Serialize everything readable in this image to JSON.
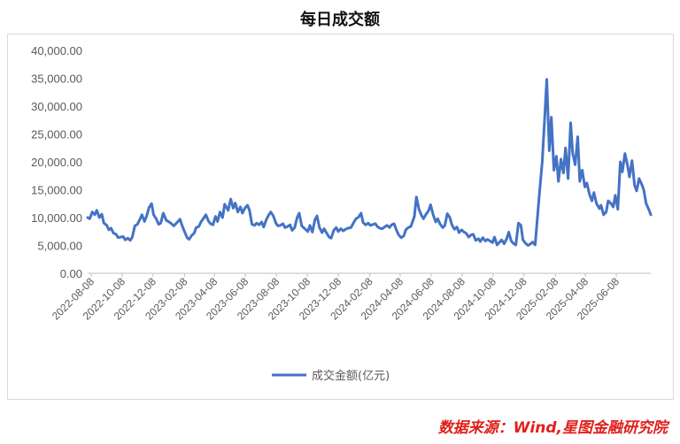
{
  "page": {
    "title": "每日成交额",
    "source": "数据来源：Wind,星图金融研究院"
  },
  "chart_data": {
    "type": "line",
    "title": "每日成交额",
    "xlabel": "",
    "ylabel": "",
    "ylim": [
      0,
      40000
    ],
    "yticks": [
      "0.00",
      "5,000.00",
      "10,000.00",
      "15,000.00",
      "20,000.00",
      "25,000.00",
      "30,000.00",
      "35,000.00",
      "40,000.00"
    ],
    "xticks": [
      "2022-08-08",
      "2022-10-08",
      "2022-12-08",
      "2023-02-08",
      "2023-04-08",
      "2023-06-08",
      "2023-08-08",
      "2023-10-08",
      "2023-12-08",
      "2024-02-08",
      "2024-04-08",
      "2024-06-08",
      "2024-08-08",
      "2024-10-08",
      "2024-12-08",
      "2025-02-08",
      "2025-04-08",
      "2025-06-08"
    ],
    "xrange": [
      "2022-08-01",
      "2025-08-15"
    ],
    "grid": false,
    "legend": "bottom-center",
    "line_color": "#4472c4",
    "series": [
      {
        "name": "成交金额(亿元)",
        "points": [
          [
            "2022-08-01",
            10000
          ],
          [
            "2022-08-05",
            9800
          ],
          [
            "2022-08-10",
            11000
          ],
          [
            "2022-08-15",
            10500
          ],
          [
            "2022-08-19",
            11300
          ],
          [
            "2022-08-24",
            10000
          ],
          [
            "2022-08-29",
            10600
          ],
          [
            "2022-09-02",
            9000
          ],
          [
            "2022-09-07",
            8700
          ],
          [
            "2022-09-12",
            7800
          ],
          [
            "2022-09-16",
            8100
          ],
          [
            "2022-09-21",
            7200
          ],
          [
            "2022-09-26",
            7000
          ],
          [
            "2022-09-30",
            6400
          ],
          [
            "2022-10-10",
            6600
          ],
          [
            "2022-10-14",
            6000
          ],
          [
            "2022-10-19",
            6300
          ],
          [
            "2022-10-24",
            5900
          ],
          [
            "2022-10-28",
            6500
          ],
          [
            "2022-11-02",
            8500
          ],
          [
            "2022-11-07",
            8800
          ],
          [
            "2022-11-11",
            9500
          ],
          [
            "2022-11-16",
            10500
          ],
          [
            "2022-11-21",
            9300
          ],
          [
            "2022-11-25",
            10200
          ],
          [
            "2022-11-30",
            11800
          ],
          [
            "2022-12-05",
            12500
          ],
          [
            "2022-12-09",
            10500
          ],
          [
            "2022-12-14",
            9800
          ],
          [
            "2022-12-19",
            8800
          ],
          [
            "2022-12-23",
            9000
          ],
          [
            "2022-12-28",
            10800
          ],
          [
            "2023-01-03",
            9500
          ],
          [
            "2023-01-09",
            9200
          ],
          [
            "2023-01-13",
            8900
          ],
          [
            "2023-01-18",
            8500
          ],
          [
            "2023-01-30",
            9700
          ],
          [
            "2023-02-03",
            8600
          ],
          [
            "2023-02-08",
            7500
          ],
          [
            "2023-02-13",
            6400
          ],
          [
            "2023-02-17",
            6100
          ],
          [
            "2023-02-22",
            6800
          ],
          [
            "2023-02-27",
            7200
          ],
          [
            "2023-03-03",
            8200
          ],
          [
            "2023-03-08",
            8400
          ],
          [
            "2023-03-13",
            9300
          ],
          [
            "2023-03-17",
            9800
          ],
          [
            "2023-03-22",
            10500
          ],
          [
            "2023-03-27",
            9400
          ],
          [
            "2023-03-31",
            8900
          ],
          [
            "2023-04-05",
            8700
          ],
          [
            "2023-04-10",
            10200
          ],
          [
            "2023-04-14",
            9300
          ],
          [
            "2023-04-19",
            11000
          ],
          [
            "2023-04-24",
            10000
          ],
          [
            "2023-04-28",
            12400
          ],
          [
            "2023-05-05",
            11300
          ],
          [
            "2023-05-10",
            13300
          ],
          [
            "2023-05-15",
            11700
          ],
          [
            "2023-05-19",
            12600
          ],
          [
            "2023-05-24",
            11000
          ],
          [
            "2023-05-29",
            11900
          ],
          [
            "2023-06-02",
            10800
          ],
          [
            "2023-06-07",
            11700
          ],
          [
            "2023-06-12",
            12200
          ],
          [
            "2023-06-16",
            11300
          ],
          [
            "2023-06-21",
            8800
          ],
          [
            "2023-06-26",
            8600
          ],
          [
            "2023-06-30",
            9000
          ],
          [
            "2023-07-05",
            8700
          ],
          [
            "2023-07-10",
            9200
          ],
          [
            "2023-07-14",
            8300
          ],
          [
            "2023-07-19",
            9600
          ],
          [
            "2023-07-24",
            10500
          ],
          [
            "2023-07-28",
            11000
          ],
          [
            "2023-08-02",
            10300
          ],
          [
            "2023-08-07",
            9000
          ],
          [
            "2023-08-11",
            8500
          ],
          [
            "2023-08-16",
            8600
          ],
          [
            "2023-08-21",
            8900
          ],
          [
            "2023-08-25",
            8200
          ],
          [
            "2023-08-30",
            8400
          ],
          [
            "2023-09-04",
            8700
          ],
          [
            "2023-09-08",
            7700
          ],
          [
            "2023-09-13",
            8200
          ],
          [
            "2023-09-18",
            10000
          ],
          [
            "2023-09-22",
            10800
          ],
          [
            "2023-09-27",
            8500
          ],
          [
            "2023-10-09",
            7500
          ],
          [
            "2023-10-13",
            8600
          ],
          [
            "2023-10-18",
            7400
          ],
          [
            "2023-10-23",
            9600
          ],
          [
            "2023-10-27",
            10300
          ],
          [
            "2023-11-01",
            8200
          ],
          [
            "2023-11-06",
            7300
          ],
          [
            "2023-11-10",
            8000
          ],
          [
            "2023-11-15",
            7200
          ],
          [
            "2023-11-20",
            6500
          ],
          [
            "2023-11-24",
            6300
          ],
          [
            "2023-11-29",
            7700
          ],
          [
            "2023-12-04",
            8200
          ],
          [
            "2023-12-08",
            7500
          ],
          [
            "2023-12-13",
            8000
          ],
          [
            "2023-12-18",
            7600
          ],
          [
            "2023-12-22",
            7900
          ],
          [
            "2023-12-27",
            8100
          ],
          [
            "2024-01-02",
            8200
          ],
          [
            "2024-01-08",
            9200
          ],
          [
            "2024-01-12",
            9800
          ],
          [
            "2024-01-17",
            10100
          ],
          [
            "2024-01-22",
            10800
          ],
          [
            "2024-01-26",
            9100
          ],
          [
            "2024-01-31",
            8700
          ],
          [
            "2024-02-05",
            9000
          ],
          [
            "2024-02-09",
            8600
          ],
          [
            "2024-02-19",
            8900
          ],
          [
            "2024-02-23",
            8400
          ],
          [
            "2024-02-28",
            8100
          ],
          [
            "2024-03-04",
            8000
          ],
          [
            "2024-03-08",
            8300
          ],
          [
            "2024-03-13",
            8600
          ],
          [
            "2024-03-18",
            8200
          ],
          [
            "2024-03-22",
            8700
          ],
          [
            "2024-03-27",
            8900
          ],
          [
            "2024-04-01",
            7700
          ],
          [
            "2024-04-05",
            6900
          ],
          [
            "2024-04-10",
            6400
          ],
          [
            "2024-04-15",
            6700
          ],
          [
            "2024-04-19",
            7800
          ],
          [
            "2024-04-24",
            8200
          ],
          [
            "2024-04-29",
            8400
          ],
          [
            "2024-05-06",
            10200
          ],
          [
            "2024-05-10",
            13700
          ],
          [
            "2024-05-15",
            11500
          ],
          [
            "2024-05-20",
            10400
          ],
          [
            "2024-05-24",
            9800
          ],
          [
            "2024-05-29",
            10600
          ],
          [
            "2024-06-03",
            11200
          ],
          [
            "2024-06-07",
            12300
          ],
          [
            "2024-06-12",
            10500
          ],
          [
            "2024-06-17",
            9200
          ],
          [
            "2024-06-21",
            9800
          ],
          [
            "2024-06-26",
            8800
          ],
          [
            "2024-07-01",
            8200
          ],
          [
            "2024-07-05",
            8600
          ],
          [
            "2024-07-10",
            10700
          ],
          [
            "2024-07-15",
            10000
          ],
          [
            "2024-07-19",
            8700
          ],
          [
            "2024-07-24",
            7900
          ],
          [
            "2024-07-29",
            8300
          ],
          [
            "2024-08-02",
            7300
          ],
          [
            "2024-08-07",
            7800
          ],
          [
            "2024-08-12",
            7400
          ],
          [
            "2024-08-16",
            7200
          ],
          [
            "2024-08-21",
            6500
          ],
          [
            "2024-08-26",
            6900
          ],
          [
            "2024-08-30",
            7000
          ],
          [
            "2024-09-04",
            5900
          ],
          [
            "2024-09-09",
            6200
          ],
          [
            "2024-09-13",
            5700
          ],
          [
            "2024-09-18",
            6400
          ],
          [
            "2024-09-23",
            5800
          ],
          [
            "2024-09-27",
            6100
          ],
          [
            "2024-10-07",
            5500
          ],
          [
            "2024-10-11",
            6500
          ],
          [
            "2024-10-16",
            5100
          ],
          [
            "2024-10-21",
            5600
          ],
          [
            "2024-10-25",
            6000
          ],
          [
            "2024-10-30",
            5300
          ],
          [
            "2024-11-04",
            6200
          ],
          [
            "2024-11-08",
            7400
          ],
          [
            "2024-11-13",
            5800
          ],
          [
            "2024-11-18",
            5300
          ],
          [
            "2024-11-22",
            5100
          ],
          [
            "2024-11-27",
            9000
          ],
          [
            "2024-12-02",
            8600
          ],
          [
            "2024-12-06",
            6000
          ],
          [
            "2024-12-11",
            5400
          ],
          [
            "2024-12-16",
            5000
          ],
          [
            "2024-12-20",
            5200
          ],
          [
            "2024-12-25",
            5600
          ],
          [
            "2024-12-30",
            5100
          ],
          [
            "2025-01-03",
            9500
          ],
          [
            "2025-01-08",
            14800
          ],
          [
            "2025-01-13",
            20000
          ],
          [
            "2025-01-17",
            26500
          ],
          [
            "2025-01-22",
            34800
          ],
          [
            "2025-01-27",
            22000
          ],
          [
            "2025-01-31",
            28000
          ],
          [
            "2025-02-05",
            18500
          ],
          [
            "2025-02-10",
            21000
          ],
          [
            "2025-02-14",
            16500
          ],
          [
            "2025-02-19",
            20500
          ],
          [
            "2025-02-24",
            18000
          ],
          [
            "2025-02-28",
            22500
          ],
          [
            "2025-03-05",
            17000
          ],
          [
            "2025-03-10",
            27000
          ],
          [
            "2025-03-14",
            21500
          ],
          [
            "2025-03-19",
            19500
          ],
          [
            "2025-03-24",
            24500
          ],
          [
            "2025-03-28",
            16500
          ],
          [
            "2025-04-02",
            18500
          ],
          [
            "2025-04-07",
            15500
          ],
          [
            "2025-04-11",
            16200
          ],
          [
            "2025-04-16",
            14200
          ],
          [
            "2025-04-21",
            13000
          ],
          [
            "2025-04-25",
            14500
          ],
          [
            "2025-04-30",
            12500
          ],
          [
            "2025-05-06",
            11600
          ],
          [
            "2025-05-09",
            12200
          ],
          [
            "2025-05-14",
            10500
          ],
          [
            "2025-05-19",
            11000
          ],
          [
            "2025-05-23",
            13000
          ],
          [
            "2025-05-28",
            12600
          ],
          [
            "2025-06-02",
            11900
          ],
          [
            "2025-06-06",
            14000
          ],
          [
            "2025-06-11",
            11500
          ],
          [
            "2025-06-16",
            20000
          ],
          [
            "2025-06-20",
            18200
          ],
          [
            "2025-06-25",
            21500
          ],
          [
            "2025-06-30",
            19500
          ],
          [
            "2025-07-04",
            17300
          ],
          [
            "2025-07-09",
            20200
          ],
          [
            "2025-07-14",
            15800
          ],
          [
            "2025-07-18",
            14800
          ],
          [
            "2025-07-23",
            17000
          ],
          [
            "2025-07-28",
            16000
          ],
          [
            "2025-08-01",
            15000
          ],
          [
            "2025-08-06",
            12500
          ],
          [
            "2025-08-11",
            11500
          ],
          [
            "2025-08-15",
            10500
          ]
        ]
      }
    ]
  }
}
